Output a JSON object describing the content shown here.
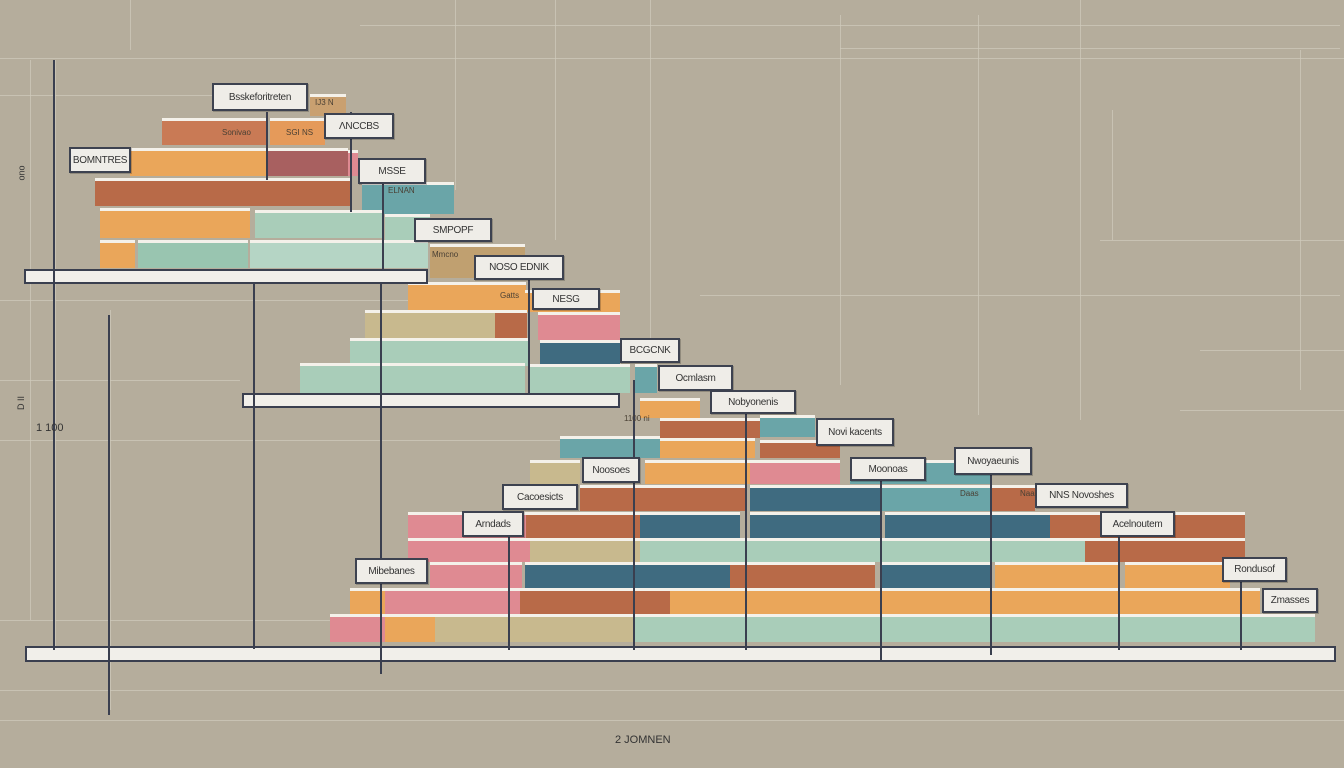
{
  "labels": [
    "Bsskeforitreten",
    "ɅNCCBS",
    "BOMNTRES",
    "MSSE",
    "SMPOPF",
    "NOSO EDNIK",
    "NESG",
    "BCGCNK",
    "Ocmlasm",
    "Nobyonenis",
    "Novi kacents",
    "Noosoes",
    "Moonoas",
    "Nwoyaeunis",
    "Cacoesicts",
    "NNS Novoshes",
    "Arndads",
    "Acelnoutem",
    "Mibebanes",
    "Rondusof",
    "Zmasses"
  ],
  "small_text": [
    "Sonivao",
    "SGI NS",
    "IJ3 N",
    "ELNAN",
    "Mmcno",
    "Gatts",
    "Daas",
    "Naai",
    "1100 ni"
  ],
  "axis": {
    "bottom_label": "2 JOMNEN",
    "left_label": "1 100",
    "left_top": "ono",
    "left_mid": "D II"
  },
  "colors": {
    "background": "#b5ad9c",
    "orange": "#eaa65a",
    "brown": "#b86a48",
    "teal": "#6aa5a8",
    "mint": "#a9cdb9",
    "dark_teal": "#3f6b80",
    "pink": "#df8a92",
    "khaki": "#c8b98e"
  }
}
